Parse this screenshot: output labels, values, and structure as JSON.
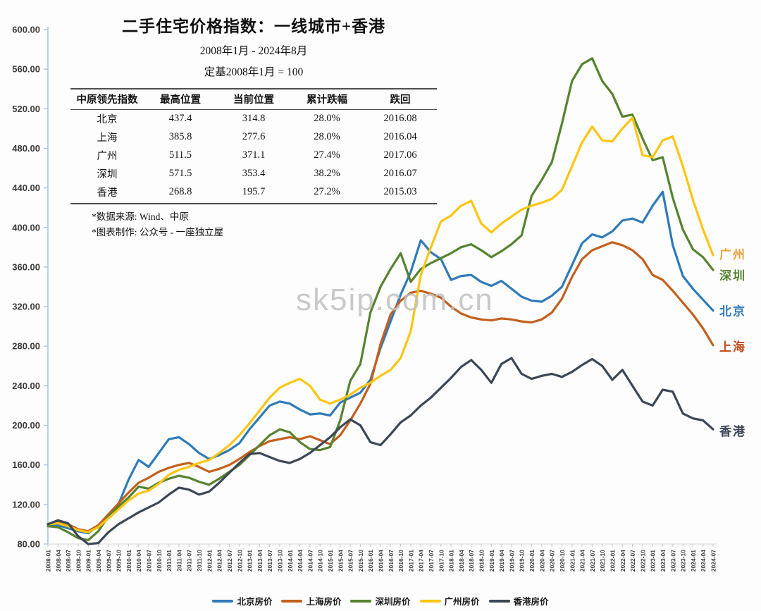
{
  "header": {
    "title": "二手住宅价格指数：一线城市+香港",
    "subtitle1": "2008年1月 - 2024年8月",
    "subtitle2": "定基2008年1月 = 100",
    "table": {
      "columns": [
        "中原领先指数",
        "最高位置",
        "当前位置",
        "累计跌幅",
        "跌回"
      ],
      "rows": [
        [
          "北京",
          "437.4",
          "314.8",
          "28.0%",
          "2016.08"
        ],
        [
          "上海",
          "385.8",
          "277.6",
          "28.0%",
          "2016.04"
        ],
        [
          "广州",
          "511.5",
          "371.1",
          "27.4%",
          "2017.06"
        ],
        [
          "深圳",
          "571.5",
          "353.4",
          "38.2%",
          "2016.07"
        ],
        [
          "香港",
          "268.8",
          "195.7",
          "27.2%",
          "2015.03"
        ]
      ]
    },
    "footnotes": [
      "*数据来源: Wind、中原",
      "*图表制作: 公众号 - 一座独立屋"
    ]
  },
  "watermark": "sk5ip.com.cn",
  "chart_data": {
    "type": "line",
    "title": "二手住宅价格指数：一线城市+香港",
    "xlabel": "",
    "ylabel": "",
    "ylim": [
      80,
      600
    ],
    "y_tick_step": 40,
    "grid": false,
    "legend_position": "bottom",
    "x_labels": [
      "2008-01",
      "2008-04",
      "2008-07",
      "2008-10",
      "2009-01",
      "2009-04",
      "2009-07",
      "2009-10",
      "2010-01",
      "2010-04",
      "2010-07",
      "2010-10",
      "2011-01",
      "2011-04",
      "2011-07",
      "2011-10",
      "2012-01",
      "2012-04",
      "2012-07",
      "2012-10",
      "2013-01",
      "2013-04",
      "2013-07",
      "2013-10",
      "2014-01",
      "2014-04",
      "2014-07",
      "2014-10",
      "2015-01",
      "2015-04",
      "2015-07",
      "2015-10",
      "2016-01",
      "2016-04",
      "2016-07",
      "2016-10",
      "2017-01",
      "2017-04",
      "2017-07",
      "2017-10",
      "2018-01",
      "2018-04",
      "2018-07",
      "2018-10",
      "2019-01",
      "2019-04",
      "2019-07",
      "2019-10",
      "2020-01",
      "2020-04",
      "2020-07",
      "2020-10",
      "2021-01",
      "2021-04",
      "2021-07",
      "2021-10",
      "2022-01",
      "2022-04",
      "2022-07",
      "2022-10",
      "2023-01",
      "2023-04",
      "2023-07",
      "2023-10",
      "2024-01",
      "2024-04",
      "2024-07"
    ],
    "series": [
      {
        "name": "北京房价",
        "end_label": "北京",
        "color": "#2f7ab8",
        "label_color": "#2f7ab8",
        "label_dy": 7,
        "values": [
          100,
          99,
          96,
          93,
          91,
          98,
          110,
          120,
          145,
          165,
          158,
          172,
          186,
          188,
          181,
          172,
          166,
          170,
          175,
          182,
          196,
          208,
          220,
          224,
          222,
          216,
          211,
          212,
          210,
          223,
          228,
          233,
          246,
          278,
          305,
          332,
          355,
          387,
          375,
          368,
          347,
          351,
          352,
          345,
          341,
          346,
          338,
          330,
          326,
          325,
          331,
          340,
          362,
          384,
          393,
          390,
          396,
          407,
          409,
          405,
          422,
          436,
          382,
          351,
          338,
          327,
          316
        ]
      },
      {
        "name": "上海房价",
        "end_label": "上海",
        "color": "#c45f1c",
        "label_color": "#c0491a",
        "label_dy": 8,
        "values": [
          100,
          103,
          100,
          95,
          93,
          99,
          110,
          121,
          132,
          142,
          147,
          153,
          157,
          160,
          162,
          158,
          153,
          156,
          160,
          166,
          173,
          179,
          184,
          186,
          188,
          186,
          189,
          185,
          181,
          190,
          205,
          222,
          242,
          282,
          312,
          326,
          334,
          336,
          333,
          329,
          320,
          313,
          309,
          307,
          306,
          308,
          307,
          305,
          304,
          307,
          314,
          328,
          350,
          368,
          377,
          381,
          385,
          382,
          377,
          368,
          352,
          347,
          336,
          324,
          312,
          298,
          281
        ]
      },
      {
        "name": "深圳房价",
        "end_label": "深圳",
        "color": "#55832f",
        "label_color": "#55832f",
        "label_dy": 14,
        "values": [
          98,
          97,
          92,
          86,
          84,
          93,
          108,
          118,
          127,
          138,
          136,
          142,
          146,
          149,
          147,
          143,
          140,
          146,
          153,
          160,
          170,
          180,
          190,
          196,
          193,
          183,
          176,
          175,
          178,
          205,
          245,
          262,
          314,
          340,
          358,
          374,
          345,
          358,
          364,
          369,
          374,
          380,
          383,
          377,
          370,
          376,
          383,
          392,
          432,
          448,
          466,
          505,
          548,
          565,
          571,
          548,
          535,
          512,
          514,
          490,
          468,
          471,
          430,
          398,
          378,
          370,
          357
        ]
      },
      {
        "name": "广州房价",
        "end_label": "广州",
        "color": "#fdc511",
        "label_color": "#e7a23c",
        "label_dy": 5,
        "values": [
          100,
          101,
          98,
          94,
          92,
          97,
          106,
          115,
          124,
          131,
          134,
          141,
          150,
          155,
          158,
          162,
          165,
          172,
          180,
          190,
          202,
          215,
          228,
          238,
          243,
          247,
          240,
          226,
          222,
          226,
          231,
          238,
          243,
          250,
          256,
          268,
          295,
          352,
          380,
          406,
          412,
          422,
          427,
          404,
          395,
          404,
          411,
          418,
          422,
          425,
          429,
          438,
          462,
          486,
          502,
          488,
          487,
          500,
          511,
          473,
          471,
          488,
          492,
          462,
          428,
          398,
          372
        ]
      },
      {
        "name": "香港房价",
        "end_label": "香港",
        "color": "#3b4757",
        "label_color": "#3b4757",
        "label_dy": 9,
        "values": [
          100,
          104,
          101,
          88,
          80,
          81,
          92,
          100,
          106,
          112,
          117,
          122,
          130,
          137,
          135,
          130,
          133,
          142,
          152,
          162,
          171,
          172,
          168,
          164,
          162,
          166,
          172,
          180,
          188,
          198,
          206,
          200,
          183,
          180,
          191,
          203,
          210,
          220,
          228,
          238,
          248,
          259,
          266,
          256,
          243,
          262,
          268,
          252,
          247,
          250,
          252,
          249,
          254,
          261,
          267,
          260,
          246,
          256,
          240,
          224,
          220,
          236,
          234,
          212,
          207,
          205,
          196
        ]
      }
    ]
  }
}
